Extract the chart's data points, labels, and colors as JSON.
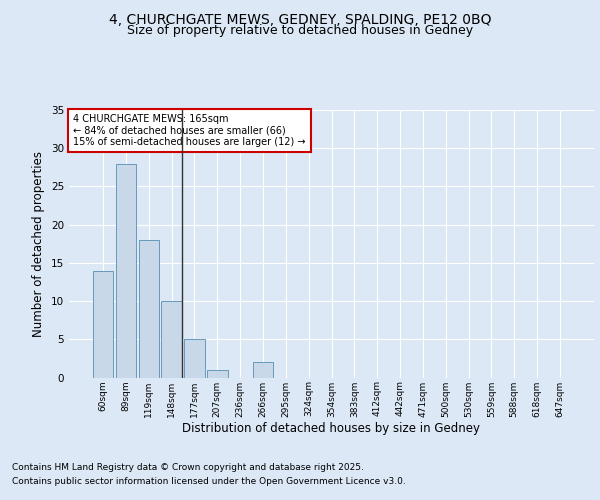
{
  "title1": "4, CHURCHGATE MEWS, GEDNEY, SPALDING, PE12 0BQ",
  "title2": "Size of property relative to detached houses in Gedney",
  "xlabel": "Distribution of detached houses by size in Gedney",
  "ylabel": "Number of detached properties",
  "categories": [
    "60sqm",
    "89sqm",
    "119sqm",
    "148sqm",
    "177sqm",
    "207sqm",
    "236sqm",
    "266sqm",
    "295sqm",
    "324sqm",
    "354sqm",
    "383sqm",
    "412sqm",
    "442sqm",
    "471sqm",
    "500sqm",
    "530sqm",
    "559sqm",
    "588sqm",
    "618sqm",
    "647sqm"
  ],
  "values": [
    14,
    28,
    18,
    10,
    5,
    1,
    0,
    2,
    0,
    0,
    0,
    0,
    0,
    0,
    0,
    0,
    0,
    0,
    0,
    0,
    0
  ],
  "bar_color": "#c8d8e8",
  "bar_edge_color": "#6699bb",
  "vline_color": "#333333",
  "ylim": [
    0,
    35
  ],
  "annotation_title": "4 CHURCHGATE MEWS: 165sqm",
  "annotation_line1": "← 84% of detached houses are smaller (66)",
  "annotation_line2": "15% of semi-detached houses are larger (12) →",
  "annotation_box_color": "#ffffff",
  "annotation_box_edge_color": "#cc0000",
  "footer_line1": "Contains HM Land Registry data © Crown copyright and database right 2025.",
  "footer_line2": "Contains public sector information licensed under the Open Government Licence v3.0.",
  "bg_color": "#dce8f5",
  "plot_bg_color": "#dce8f5",
  "grid_color": "#ffffff",
  "title_fontsize": 10,
  "subtitle_fontsize": 9,
  "axis_label_fontsize": 8.5,
  "tick_fontsize": 6.5,
  "annotation_fontsize": 7,
  "footer_fontsize": 6.5
}
